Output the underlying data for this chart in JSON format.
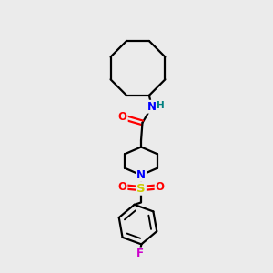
{
  "bg_color": "#ebebeb",
  "atom_colors": {
    "N": "#0000ff",
    "O": "#ff0000",
    "S": "#cccc00",
    "F": "#cc00cc",
    "H": "#008080"
  },
  "line_color": "#000000",
  "line_width": 1.6
}
